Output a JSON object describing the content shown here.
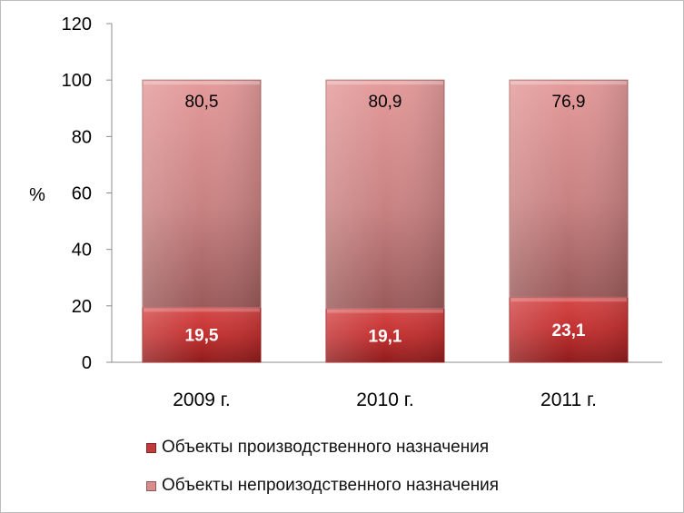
{
  "chart_data": {
    "type": "bar",
    "stacked": true,
    "categories": [
      "2009 г.",
      "2010 г.",
      "2011 г."
    ],
    "series": [
      {
        "name": "Объекты производственного назначения",
        "values": [
          19.5,
          19.1,
          23.1
        ],
        "value_labels": [
          "19,5",
          "19,1",
          "23,1"
        ],
        "color": "#c23a3a"
      },
      {
        "name": "Объекты непроизодственного назначения",
        "values": [
          80.5,
          80.9,
          76.9
        ],
        "value_labels": [
          "80,5",
          "80,9",
          "76,9"
        ],
        "color": "#d88c8c"
      }
    ],
    "ylabel": "%",
    "ylim": [
      0,
      120
    ],
    "yticks": [
      "0",
      "20",
      "40",
      "60",
      "80",
      "100",
      "120"
    ],
    "grid": false,
    "legend_position": "bottom"
  }
}
